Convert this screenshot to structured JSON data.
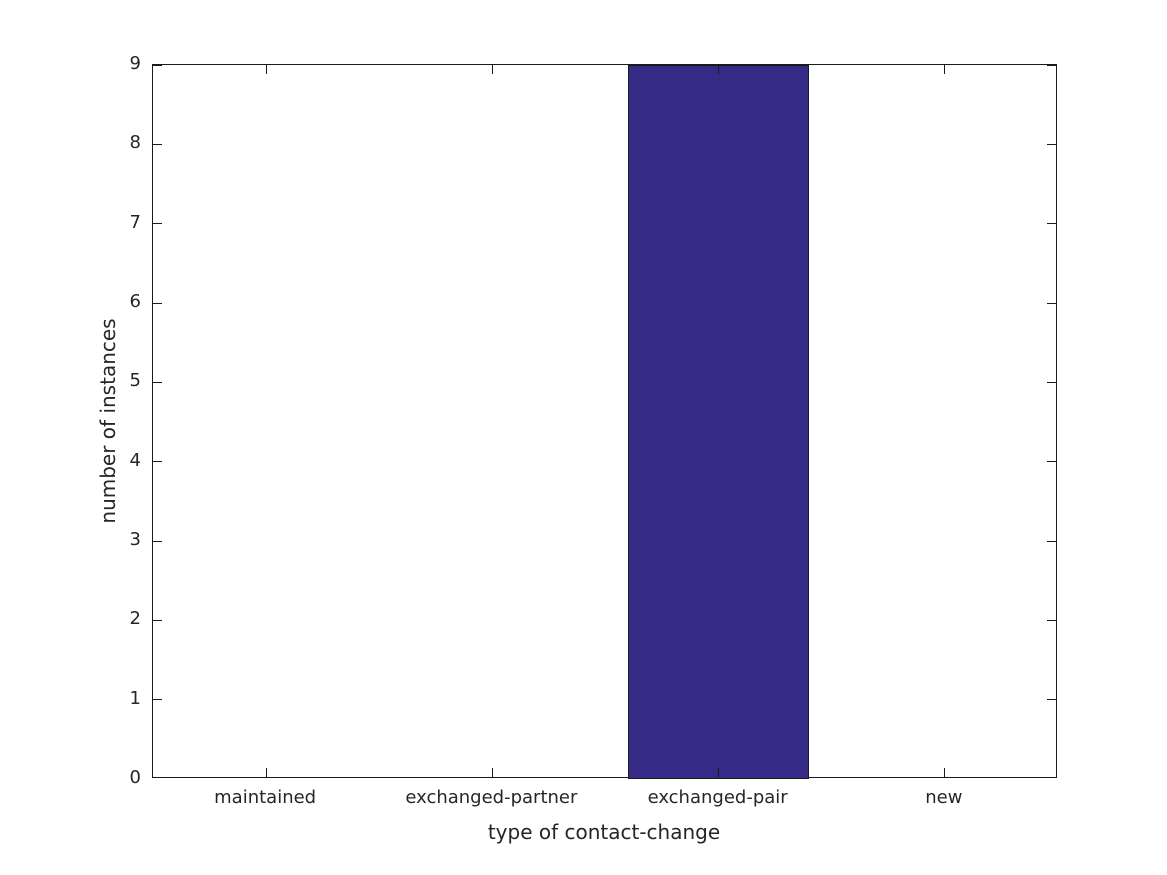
{
  "chart_data": {
    "type": "bar",
    "title": "",
    "xlabel": "type of contact-change",
    "ylabel": "number of instances",
    "categories": [
      "maintained",
      "exchanged-partner",
      "exchanged-pair",
      "new"
    ],
    "values": [
      0,
      0,
      9,
      0
    ],
    "ylim": [
      0,
      9
    ],
    "yticks": [
      0,
      1,
      2,
      3,
      4,
      5,
      6,
      7,
      8,
      9
    ],
    "bar_color": "#352b87",
    "bar_edge_color": "#1a1a1a",
    "axis_color": "#1a1a1a",
    "text_color": "#262626",
    "bar_width_fraction": 0.8,
    "grid": false,
    "legend_position": "none",
    "tick_direction": "in",
    "ticks_on_all_sides": true
  }
}
